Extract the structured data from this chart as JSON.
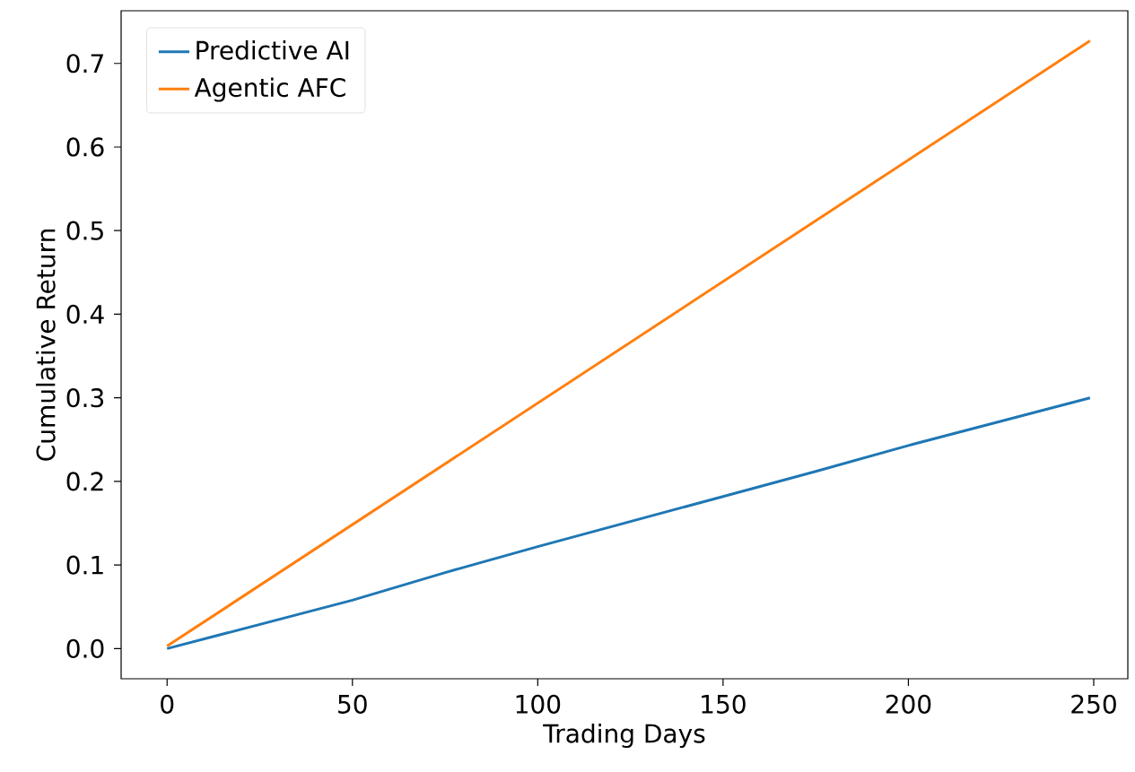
{
  "chart_data": {
    "type": "line",
    "xlabel": "Trading Days",
    "ylabel": "Cumulative Return",
    "series": [
      {
        "name": "Predictive AI",
        "color": "#1f77b4",
        "x": [
          0,
          25,
          50,
          75,
          100,
          125,
          150,
          175,
          200,
          225,
          249
        ],
        "values": [
          0.0,
          0.029,
          0.058,
          0.091,
          0.122,
          0.152,
          0.182,
          0.212,
          0.243,
          0.272,
          0.3
        ]
      },
      {
        "name": "Agentic AFC",
        "color": "#ff7f0e",
        "x": [
          0,
          249
        ],
        "values": [
          0.003,
          0.727
        ]
      }
    ],
    "xlim": [
      -12.4,
      259.2
    ],
    "ylim": [
      -0.036,
      0.763
    ],
    "xticks": [
      0,
      50,
      100,
      150,
      200,
      250
    ],
    "yticks": [
      {
        "value": 0.0,
        "label": "0.0"
      },
      {
        "value": 0.1,
        "label": "0.1"
      },
      {
        "value": 0.2,
        "label": "0.2"
      },
      {
        "value": 0.3,
        "label": "0.3"
      },
      {
        "value": 0.4,
        "label": "0.4"
      },
      {
        "value": 0.5,
        "label": "0.5"
      },
      {
        "value": 0.6,
        "label": "0.6"
      },
      {
        "value": 0.7,
        "label": "0.7"
      }
    ],
    "legend": "top left",
    "grid": false,
    "marker": "none",
    "line_style": "solid"
  }
}
